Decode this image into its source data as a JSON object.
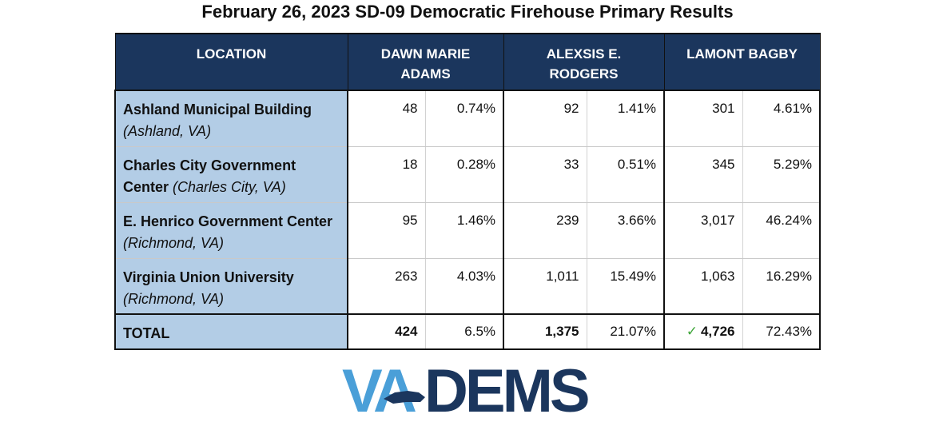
{
  "title": "February 26, 2023 SD-09 Democratic Firehouse Primary Results",
  "table": {
    "headers": {
      "location": "LOCATION",
      "candidates": [
        {
          "line1": "DAWN MARIE",
          "line2": "ADAMS"
        },
        {
          "line1": "ALEXSIS E.",
          "line2": "RODGERS"
        },
        {
          "line1": "LAMONT BAGBY",
          "line2": ""
        }
      ]
    },
    "rows": [
      {
        "name": "Ashland Municipal Building",
        "city": "(Ashland, VA)",
        "cells": [
          "48",
          "0.74%",
          "92",
          "1.41%",
          "301",
          "4.61%"
        ]
      },
      {
        "name": "Charles City Government Center",
        "city": "(Charles City, VA)",
        "cells": [
          "18",
          "0.28%",
          "33",
          "0.51%",
          "345",
          "5.29%"
        ]
      },
      {
        "name": "E. Henrico Government Center",
        "city": "(Richmond, VA)",
        "cells": [
          "95",
          "1.46%",
          "239",
          "3.66%",
          "3,017",
          "46.24%"
        ]
      },
      {
        "name": "Virginia Union University",
        "city": "(Richmond, VA)",
        "cells": [
          "263",
          "4.03%",
          "1,011",
          "15.49%",
          "1,063",
          "16.29%"
        ]
      }
    ],
    "total": {
      "label": "TOTAL",
      "cells": [
        "424",
        "6.5%",
        "1,375",
        "21.07%",
        "4,726",
        "72.43%"
      ],
      "winner_mark": "✓"
    }
  },
  "logo": {
    "text_va": "VA",
    "text_dems": "DEMS",
    "colors": {
      "light": "#4a9fd8",
      "dark": "#1b365d"
    }
  }
}
